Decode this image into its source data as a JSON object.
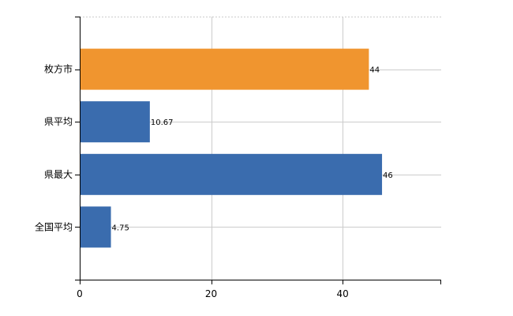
{
  "chart_data": {
    "type": "bar",
    "orientation": "horizontal",
    "categories": [
      "枚方市",
      "県平均",
      "県最大",
      "全国平均"
    ],
    "values": [
      44,
      10.67,
      46,
      4.75
    ],
    "data_labels": [
      "44",
      "10.67",
      "46",
      "4.75"
    ],
    "x_ticks": [
      0,
      20,
      40
    ],
    "xlim": [
      0,
      55
    ],
    "grid": true,
    "colors": {
      "highlight": "#F0952F",
      "default": "#3A6CAE",
      "grid": "#cccccc",
      "axis": "#000000"
    },
    "bar_colors": [
      "highlight",
      "default",
      "default",
      "default"
    ]
  }
}
